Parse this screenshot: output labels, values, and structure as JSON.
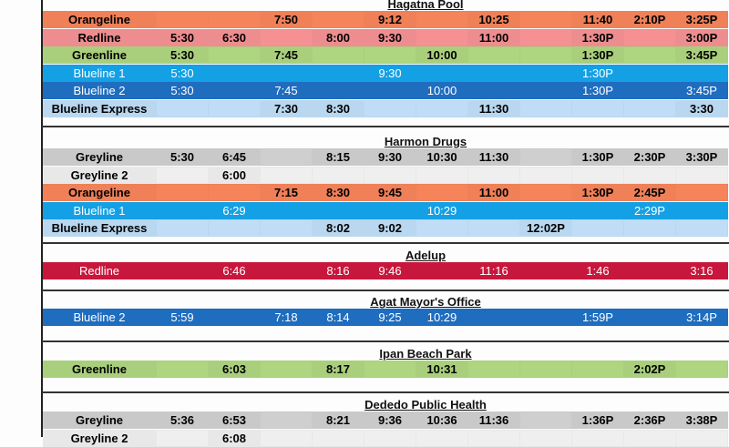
{
  "colors": {
    "Orangeline": "#ef8058",
    "Redline": "#ee8d8f",
    "Redline-dark": "#c8173c",
    "Greenline": "#a9cf7c",
    "Blueline 1": "#14a0e4",
    "Blueline 2": "#1f6dbf",
    "Blueline Express": "#b9d7ef",
    "Greyline": "#c9c9c9",
    "Greyline 2": "#e8e8e8"
  },
  "sections": [
    {
      "title": "Hagatna Pool",
      "rows": [
        {
          "route": "Orangeline",
          "times": [
            "",
            "",
            "7:50",
            "",
            "9:12",
            "",
            "10:25",
            "",
            "11:40",
            "2:10P",
            "3:25P"
          ]
        },
        {
          "route": "Redline",
          "times": [
            "5:30",
            "6:30",
            "",
            "8:00",
            "9:30",
            "",
            "11:00",
            "",
            "1:30P",
            "",
            "3:00P"
          ]
        },
        {
          "route": "Greenline",
          "times": [
            "5:30",
            "",
            "7:45",
            "",
            "",
            "10:00",
            "",
            "",
            "1:30P",
            "",
            "3:45P"
          ]
        },
        {
          "route": "Blueline 1",
          "times": [
            "5:30",
            "",
            "",
            "",
            "9:30",
            "",
            "",
            "",
            "1:30P",
            "",
            ""
          ]
        },
        {
          "route": "Blueline 2",
          "times": [
            "5:30",
            "",
            "7:45",
            "",
            "",
            "10:00",
            "",
            "",
            "1:30P",
            "",
            "3:45P"
          ]
        },
        {
          "route": "Blueline Express",
          "times": [
            "",
            "",
            "7:30",
            "8:30",
            "",
            "",
            "11:30",
            "",
            "",
            "",
            "3:30"
          ]
        }
      ]
    },
    {
      "title": "Harmon Drugs",
      "rows": [
        {
          "route": "Greyline",
          "times": [
            "5:30",
            "6:45",
            "",
            "8:15",
            "9:30",
            "10:30",
            "11:30",
            "",
            "1:30P",
            "2:30P",
            "3:30P"
          ]
        },
        {
          "route": "Greyline 2",
          "times": [
            "",
            "6:00",
            "",
            "",
            "",
            "",
            "",
            "",
            "",
            "",
            ""
          ]
        },
        {
          "route": "Orangeline",
          "times": [
            "",
            "",
            "7:15",
            "8:30",
            "9:45",
            "",
            "11:00",
            "",
            "1:30P",
            "2:45P",
            ""
          ]
        },
        {
          "route": "Blueline 1",
          "times": [
            "",
            "6:29",
            "",
            "",
            "",
            "10:29",
            "",
            "",
            "",
            "2:29P",
            ""
          ]
        },
        {
          "route": "Blueline Express",
          "times": [
            "",
            "",
            "",
            "8:02",
            "9:02",
            "",
            "",
            "12:02P",
            "",
            "",
            ""
          ]
        }
      ]
    },
    {
      "title": "Adelup",
      "rows": [
        {
          "route": "Redline",
          "variant": "dark",
          "times": [
            "",
            "6:46",
            "",
            "8:16",
            "9:46",
            "",
            "11:16",
            "",
            "1:46",
            "",
            "3:16"
          ]
        }
      ]
    },
    {
      "title": "Agat Mayor's Office",
      "rows": [
        {
          "route": "Blueline 2",
          "times": [
            "5:59",
            "",
            "7:18",
            "8:14",
            "9:25",
            "10:29",
            "",
            "",
            "1:59P",
            "",
            "3:14P"
          ]
        }
      ]
    },
    {
      "title": "Ipan Beach Park",
      "rows": [
        {
          "route": "Greenline",
          "times": [
            "",
            "6:03",
            "",
            "8:17",
            "",
            "10:31",
            "",
            "",
            "",
            "2:02P",
            ""
          ]
        }
      ]
    },
    {
      "title": "Dededo Public Health",
      "rows": [
        {
          "route": "Greyline",
          "times": [
            "5:36",
            "6:53",
            "",
            "8:21",
            "9:36",
            "10:36",
            "11:36",
            "",
            "1:36P",
            "2:36P",
            "3:38P"
          ]
        },
        {
          "route": "Greyline 2",
          "times": [
            "",
            "6:08",
            "",
            "",
            "",
            "",
            "",
            "",
            "",
            "",
            ""
          ]
        }
      ]
    }
  ]
}
